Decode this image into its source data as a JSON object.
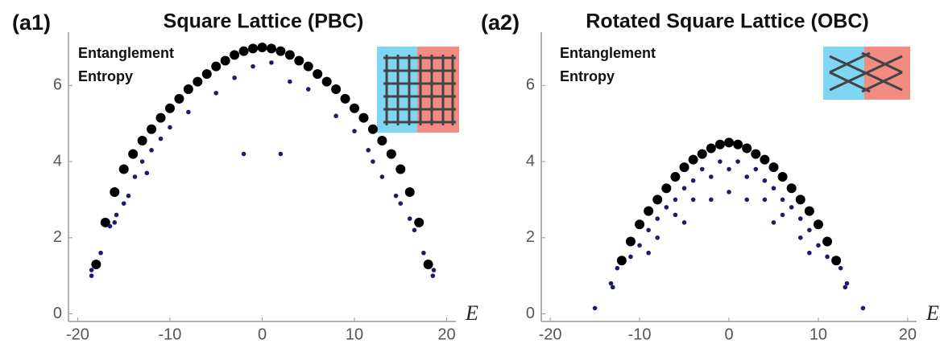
{
  "chart_data": [
    {
      "type": "scatter",
      "panel": "(a1)",
      "title": "Square Lattice (PBC)",
      "annotation": [
        "Entanglement",
        "Entropy"
      ],
      "x_label": "E",
      "xlim": [
        -21,
        21
      ],
      "ylim": [
        -0.2,
        7.4
      ],
      "xticks": [
        -20,
        -10,
        0,
        10,
        20
      ],
      "yticks": [
        0,
        2,
        4,
        6
      ],
      "series": [
        {
          "color": "#000000",
          "x": [
            -18,
            -17,
            -16,
            -15,
            -14,
            -13,
            -12,
            -11,
            -10,
            -9,
            -8,
            -7,
            -6,
            -5,
            -4,
            -3,
            -2,
            -1,
            0,
            1,
            2,
            3,
            4,
            5,
            6,
            7,
            8,
            9,
            10,
            11,
            12,
            13,
            14,
            15,
            16,
            17,
            18
          ],
          "values": [
            1.3,
            2.4,
            3.2,
            3.8,
            4.2,
            4.55,
            4.85,
            5.15,
            5.4,
            5.65,
            5.9,
            6.1,
            6.3,
            6.5,
            6.65,
            6.8,
            6.9,
            6.97,
            7.0,
            6.97,
            6.9,
            6.8,
            6.65,
            6.5,
            6.3,
            6.1,
            5.9,
            5.65,
            5.4,
            5.15,
            4.85,
            4.55,
            4.2,
            3.8,
            3.2,
            2.4,
            1.3
          ]
        },
        {
          "color": "#1c1c6b",
          "x": [
            -18.5,
            -18.5,
            18.5,
            18.6,
            -17.5,
            17.5,
            -16.5,
            16.5,
            -16,
            16,
            -15.8,
            -15,
            15,
            -14.5,
            14.5,
            -13.8,
            13,
            -13,
            -12.5,
            -12,
            12,
            -11,
            11.5,
            -10,
            10,
            -8,
            8,
            -5,
            5,
            -3,
            3,
            -2,
            2,
            -1,
            1
          ],
          "values": [
            1.0,
            1.15,
            1.0,
            1.15,
            1.6,
            1.6,
            2.3,
            2.2,
            2.4,
            2.5,
            2.6,
            2.9,
            2.9,
            3.1,
            3.1,
            3.6,
            3.6,
            4.0,
            3.7,
            4.3,
            4.0,
            4.6,
            4.3,
            4.9,
            4.8,
            5.3,
            5.2,
            5.8,
            5.9,
            6.2,
            6.1,
            4.2,
            4.2,
            6.5,
            6.6
          ]
        }
      ]
    },
    {
      "type": "scatter",
      "panel": "(a2)",
      "title": "Rotated Square Lattice (OBC)",
      "annotation": [
        "Entanglement",
        "Entropy"
      ],
      "x_label": "E",
      "xlim": [
        -21,
        21
      ],
      "ylim": [
        -0.2,
        7.4
      ],
      "xticks": [
        -20,
        -10,
        0,
        10,
        20
      ],
      "yticks": [
        0,
        2,
        4,
        6
      ],
      "series": [
        {
          "color": "#000000",
          "x": [
            -12,
            -11,
            -10,
            -9,
            -8,
            -7,
            -6,
            -5,
            -4,
            -3,
            -2,
            -1,
            0,
            1,
            2,
            3,
            4,
            5,
            6,
            7,
            8,
            9,
            10,
            11,
            12
          ],
          "values": [
            1.4,
            1.9,
            2.35,
            2.7,
            3.0,
            3.3,
            3.6,
            3.85,
            4.05,
            4.2,
            4.35,
            4.45,
            4.5,
            4.45,
            4.35,
            4.2,
            4.05,
            3.85,
            3.6,
            3.3,
            3.0,
            2.7,
            2.35,
            1.9,
            1.4
          ]
        },
        {
          "color": "#1c1c6b",
          "x": [
            -15,
            15,
            -13.2,
            -13,
            13.2,
            13,
            -12.5,
            12.5,
            -11,
            11,
            -10,
            10,
            -9,
            9,
            -9,
            9,
            -8,
            -8,
            8,
            8,
            -7,
            7,
            -6,
            -6,
            6,
            6,
            -5,
            5,
            -5,
            5,
            -4,
            -4,
            4,
            4,
            -3,
            3,
            -2,
            -2,
            2,
            2,
            -1,
            1,
            0,
            0
          ],
          "values": [
            0.15,
            0.15,
            0.8,
            0.7,
            0.8,
            0.7,
            1.2,
            1.2,
            1.5,
            1.5,
            1.8,
            1.8,
            2.2,
            2.2,
            1.6,
            1.6,
            2.0,
            2.5,
            2.5,
            2.0,
            2.8,
            2.8,
            2.6,
            3.0,
            3.0,
            2.6,
            3.3,
            3.3,
            2.4,
            2.4,
            3.0,
            3.5,
            3.5,
            3.0,
            3.8,
            3.8,
            3.6,
            3.0,
            3.0,
            3.6,
            4.0,
            4.0,
            3.2,
            3.8
          ]
        }
      ]
    }
  ]
}
